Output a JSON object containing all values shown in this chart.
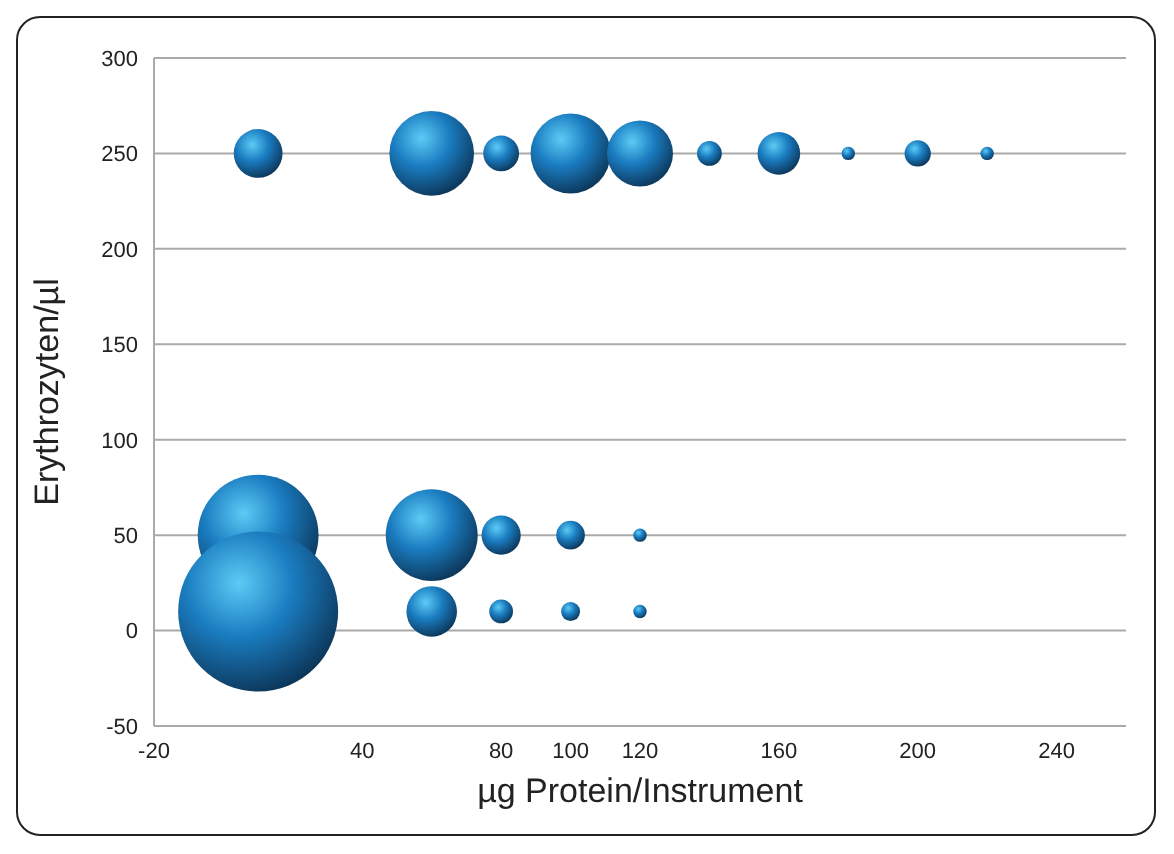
{
  "chart_data": {
    "type": "bubble",
    "xlabel": "µg Protein/Instrument",
    "ylabel": "Erythrozyten/µl",
    "xlim": [
      -20,
      260
    ],
    "xticks": [
      -20,
      40,
      80,
      100,
      120,
      160,
      200,
      240
    ],
    "ylim": [
      -50,
      300
    ],
    "yticks": [
      -50,
      0,
      50,
      100,
      150,
      200,
      250,
      300
    ],
    "grid": "y",
    "series": [
      {
        "color": "#1a7cc0",
        "x": [
          10,
          60,
          80,
          100,
          120,
          140,
          160,
          180,
          200,
          220,
          10,
          60,
          80,
          100,
          120,
          10,
          60,
          80,
          100,
          120
        ],
        "values": [
          250,
          250,
          250,
          250,
          250,
          250,
          250,
          250,
          250,
          250,
          50,
          50,
          50,
          50,
          50,
          10,
          10,
          10,
          10,
          10
        ],
        "sizes": [
          0.093,
          0.28,
          0.05,
          0.25,
          0.17,
          0.024,
          0.071,
          0.007,
          0.027,
          0.007,
          0.57,
          0.33,
          0.06,
          0.032,
          0.007,
          1,
          0.1,
          0.022,
          0.014,
          0.007
        ]
      }
    ]
  }
}
